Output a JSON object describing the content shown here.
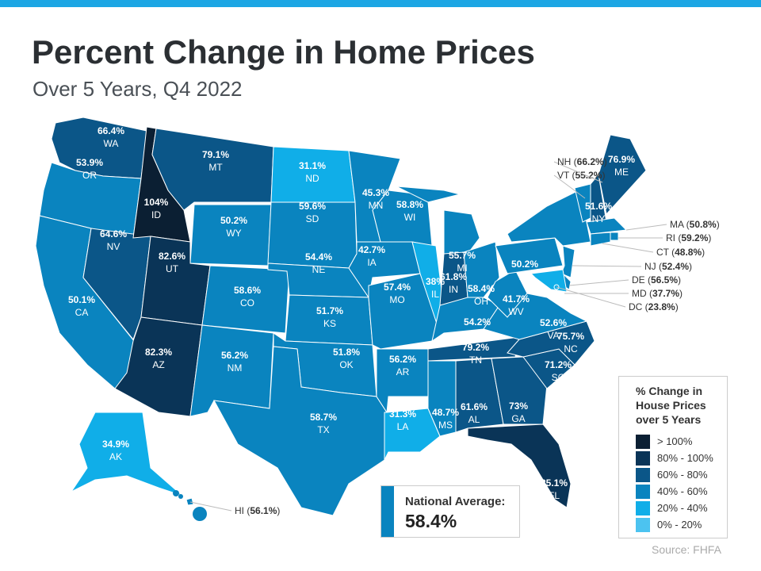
{
  "title": "Percent Change in Home Prices",
  "subtitle": "Over 5 Years, Q4 2022",
  "source": "Source: FHFA",
  "national_average": {
    "label": "National Average:",
    "value": "58.4%"
  },
  "legend": {
    "title": "% Change in House Prices over 5 Years",
    "bins": [
      {
        "label": "> 100%",
        "min": 100,
        "color": "#0b1f33"
      },
      {
        "label": "80% - 100%",
        "min": 80,
        "color": "#0a3457"
      },
      {
        "label": "60% - 80%",
        "min": 60,
        "color": "#0b5688"
      },
      {
        "label": "40% - 60%",
        "min": 40,
        "color": "#0a84bf"
      },
      {
        "label": "20% - 40%",
        "min": 20,
        "color": "#10aee8"
      },
      {
        "label": "0% - 20%",
        "min": 0,
        "color": "#4cc3f0"
      }
    ]
  },
  "states": [
    {
      "abbr": "WA",
      "value": "66.4%"
    },
    {
      "abbr": "OR",
      "value": "53.9%"
    },
    {
      "abbr": "CA",
      "value": "50.1%"
    },
    {
      "abbr": "NV",
      "value": "64.6%"
    },
    {
      "abbr": "ID",
      "value": "104%"
    },
    {
      "abbr": "MT",
      "value": "79.1%"
    },
    {
      "abbr": "WY",
      "value": "50.2%"
    },
    {
      "abbr": "UT",
      "value": "82.6%"
    },
    {
      "abbr": "CO",
      "value": "58.6%"
    },
    {
      "abbr": "AZ",
      "value": "82.3%"
    },
    {
      "abbr": "NM",
      "value": "56.2%"
    },
    {
      "abbr": "ND",
      "value": "31.1%"
    },
    {
      "abbr": "SD",
      "value": "59.6%"
    },
    {
      "abbr": "NE",
      "value": "54.4%"
    },
    {
      "abbr": "KS",
      "value": "51.7%"
    },
    {
      "abbr": "OK",
      "value": "51.8%"
    },
    {
      "abbr": "TX",
      "value": "58.7%"
    },
    {
      "abbr": "MN",
      "value": "45.3%"
    },
    {
      "abbr": "IA",
      "value": "42.7%"
    },
    {
      "abbr": "MO",
      "value": "57.4%"
    },
    {
      "abbr": "AR",
      "value": "56.2%"
    },
    {
      "abbr": "LA",
      "value": "31.3%"
    },
    {
      "abbr": "WI",
      "value": "58.8%"
    },
    {
      "abbr": "IL",
      "value": "38%"
    },
    {
      "abbr": "MI",
      "value": "55.7%"
    },
    {
      "abbr": "IN",
      "value": "61.8%"
    },
    {
      "abbr": "OH",
      "value": "58.4%"
    },
    {
      "abbr": "KY",
      "value": "54.2%"
    },
    {
      "abbr": "TN",
      "value": "79.2%"
    },
    {
      "abbr": "MS",
      "value": "48.7%"
    },
    {
      "abbr": "AL",
      "value": "61.6%"
    },
    {
      "abbr": "GA",
      "value": "73%"
    },
    {
      "abbr": "FL",
      "value": "85.1%"
    },
    {
      "abbr": "SC",
      "value": "71.2%"
    },
    {
      "abbr": "NC",
      "value": "75.7%"
    },
    {
      "abbr": "VA",
      "value": "52.6%"
    },
    {
      "abbr": "WV",
      "value": "41.7%"
    },
    {
      "abbr": "PA",
      "value": "50.2%"
    },
    {
      "abbr": "NY",
      "value": "51.6%"
    },
    {
      "abbr": "ME",
      "value": "76.9%"
    },
    {
      "abbr": "AK",
      "value": "34.9%"
    },
    {
      "abbr": "VT",
      "value": "55.2%",
      "callout": true
    },
    {
      "abbr": "NH",
      "value": "66.2%",
      "callout": true
    },
    {
      "abbr": "MA",
      "value": "50.8%",
      "callout": true
    },
    {
      "abbr": "RI",
      "value": "59.2%",
      "callout": true
    },
    {
      "abbr": "CT",
      "value": "48.8%",
      "callout": true
    },
    {
      "abbr": "NJ",
      "value": "52.4%",
      "callout": true
    },
    {
      "abbr": "DE",
      "value": "56.5%",
      "callout": true
    },
    {
      "abbr": "MD",
      "value": "37.7%",
      "callout": true
    },
    {
      "abbr": "DC",
      "value": "23.8%",
      "callout": true
    },
    {
      "abbr": "HI",
      "value": "56.1%",
      "callout": true
    }
  ]
}
